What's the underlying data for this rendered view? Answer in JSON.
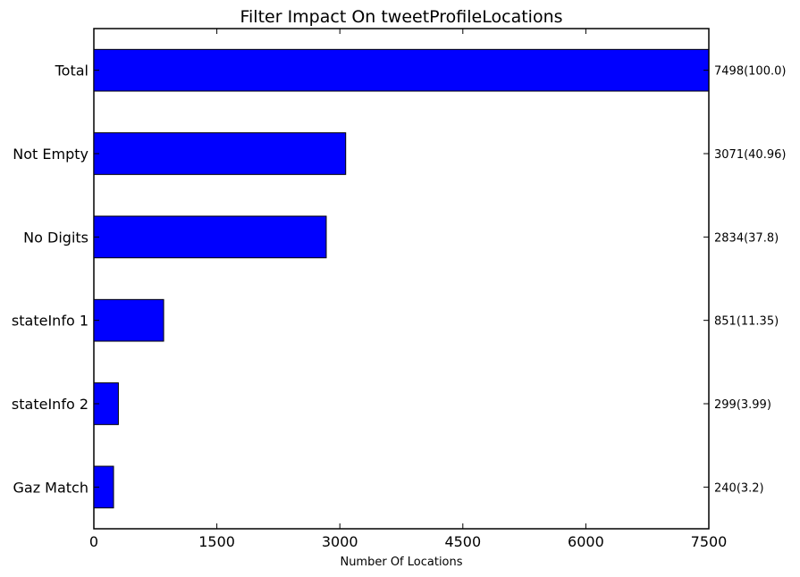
{
  "chart_data": {
    "type": "bar",
    "orientation": "horizontal",
    "title": "Filter Impact On tweetProfileLocations",
    "xlabel": "Number Of Locations",
    "ylabel": "",
    "xlim": [
      0,
      7500
    ],
    "xticks": [
      0,
      1500,
      3000,
      4500,
      6000,
      7500
    ],
    "xtick_labels": [
      "0",
      "1500",
      "3000",
      "4500",
      "6000",
      "7500"
    ],
    "categories": [
      "Total",
      "Not Empty",
      "No Digits",
      "stateInfo 1",
      "stateInfo 2",
      "Gaz Match"
    ],
    "values": [
      7498,
      3071,
      2834,
      851,
      299,
      240
    ],
    "data_labels": [
      "7498(100.0)",
      "3071(40.96)",
      "2834(37.8)",
      "851(11.35)",
      "299(3.99)",
      "240(3.2)"
    ],
    "colors": {
      "bar": "#0000ff",
      "bar_edge": "#000000"
    },
    "grid": false,
    "legend": "none"
  }
}
